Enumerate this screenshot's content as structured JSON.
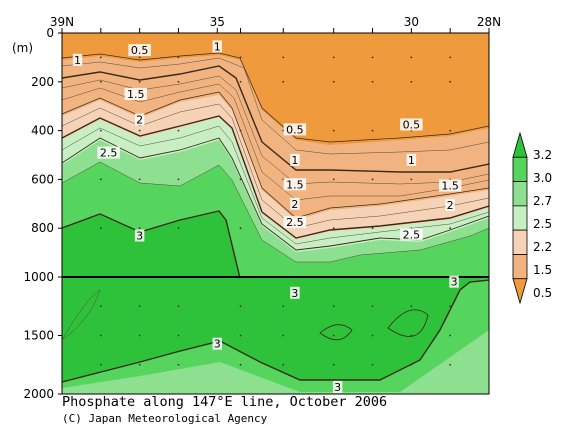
{
  "chart_data": {
    "type": "contour",
    "title": "Phosphate along 147°E line, October 2006",
    "credit": "(C) Japan Meteorological Agency",
    "y_unit_label": "(m)",
    "x_tick_labels": [
      {
        "lat": 39,
        "label": "39N"
      },
      {
        "lat": 35,
        "label": "35"
      },
      {
        "lat": 30,
        "label": "30"
      },
      {
        "lat": 28,
        "label": "28N"
      }
    ],
    "y_tick_labels_upper": [
      0,
      200,
      400,
      600,
      800,
      1000
    ],
    "y_tick_labels_lower": [
      1500,
      2000
    ],
    "x_range": [
      39,
      28
    ],
    "y_range": [
      0,
      2000
    ],
    "axis_break_depth": 1000,
    "colorbar": {
      "labels": [
        "3.2",
        "3.0",
        "2.7",
        "2.5",
        "2.2",
        "1.5",
        "0.5"
      ],
      "colors": [
        "#2ec23a",
        "#55d45e",
        "#8de08f",
        "#c7efc3",
        "#f6d2b6",
        "#f1b37f",
        "#ef9a3c"
      ]
    },
    "contour_labels": [
      {
        "value": "0.5",
        "lat": 37.0,
        "depth": 70
      },
      {
        "value": "1",
        "lat": 38.6,
        "depth": 110
      },
      {
        "value": "1",
        "lat": 35.0,
        "depth": 55
      },
      {
        "value": "1.5",
        "lat": 37.1,
        "depth": 250
      },
      {
        "value": "2",
        "lat": 37.0,
        "depth": 355
      },
      {
        "value": "2.5",
        "lat": 37.8,
        "depth": 490
      },
      {
        "value": "3",
        "lat": 37.0,
        "depth": 830
      },
      {
        "value": "0.5",
        "lat": 33.0,
        "depth": 395
      },
      {
        "value": "0.5",
        "lat": 30.0,
        "depth": 375
      },
      {
        "value": "1",
        "lat": 33.0,
        "depth": 520
      },
      {
        "value": "1",
        "lat": 30.0,
        "depth": 520
      },
      {
        "value": "1.5",
        "lat": 33.0,
        "depth": 620
      },
      {
        "value": "1.5",
        "lat": 29.0,
        "depth": 625
      },
      {
        "value": "2",
        "lat": 33.0,
        "depth": 700
      },
      {
        "value": "2",
        "lat": 29.0,
        "depth": 705
      },
      {
        "value": "2.5",
        "lat": 33.0,
        "depth": 775
      },
      {
        "value": "2.5",
        "lat": 30.0,
        "depth": 825
      },
      {
        "value": "3",
        "lat": 33.0,
        "depth": 1135
      },
      {
        "value": "3",
        "lat": 28.9,
        "depth": 1040
      },
      {
        "value": "3",
        "lat": 35.0,
        "depth": 1570
      },
      {
        "value": "3",
        "lat": 31.9,
        "depth": 1940
      }
    ],
    "station_latitudes": [
      39,
      38,
      37,
      36,
      35,
      34.4,
      33.3,
      32,
      31,
      30,
      29,
      28
    ]
  }
}
